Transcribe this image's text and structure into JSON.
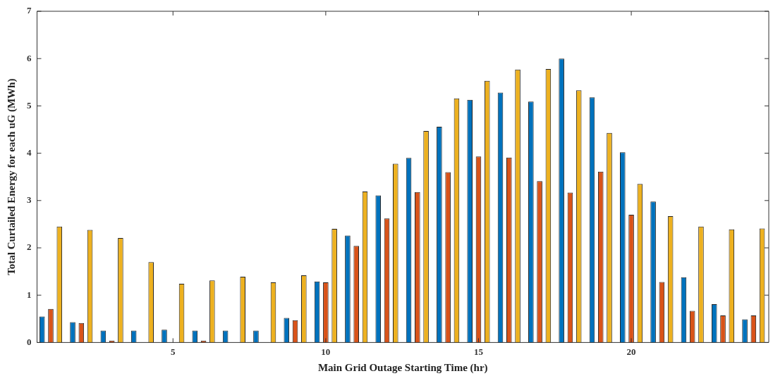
{
  "chart_data": {
    "type": "bar",
    "xlabel": "Main Grid Outage Starting Time (hr)",
    "ylabel": "Total Curtailed Energy for each uG (MWh)",
    "x": [
      1,
      2,
      3,
      4,
      5,
      6,
      7,
      8,
      9,
      10,
      11,
      12,
      13,
      14,
      15,
      16,
      17,
      18,
      19,
      20,
      21,
      22,
      23,
      24
    ],
    "xlim": [
      0.55,
      24.5
    ],
    "xticks": [
      5,
      10,
      15,
      20
    ],
    "ylim": [
      0,
      7
    ],
    "yticks": [
      0,
      1,
      2,
      3,
      4,
      5,
      6,
      7
    ],
    "grid": false,
    "legend": false,
    "series": [
      {
        "color": "#0072bd",
        "values": [
          0.55,
          0.43,
          0.25,
          0.25,
          0.27,
          0.25,
          0.25,
          0.25,
          0.52,
          1.29,
          2.26,
          3.11,
          3.9,
          4.56,
          5.13,
          5.28,
          5.09,
          6.0,
          5.18,
          4.02,
          2.98,
          1.38,
          0.81,
          0.49
        ]
      },
      {
        "color": "#d95319",
        "values": [
          0.71,
          0.41,
          0.04,
          0,
          0,
          0.04,
          0,
          0,
          0.47,
          1.27,
          2.04,
          2.62,
          3.18,
          3.6,
          3.93,
          3.91,
          3.41,
          3.17,
          3.61,
          2.7,
          1.28,
          0.67,
          0.57,
          0.57
        ]
      },
      {
        "color": "#edb120",
        "values": [
          2.45,
          2.38,
          2.21,
          1.7,
          1.24,
          1.31,
          1.39,
          1.27,
          1.42,
          2.4,
          3.19,
          3.78,
          4.47,
          5.16,
          5.53,
          5.77,
          5.78,
          5.33,
          4.43,
          3.35,
          2.67,
          2.45,
          2.39,
          2.41
        ]
      }
    ]
  }
}
